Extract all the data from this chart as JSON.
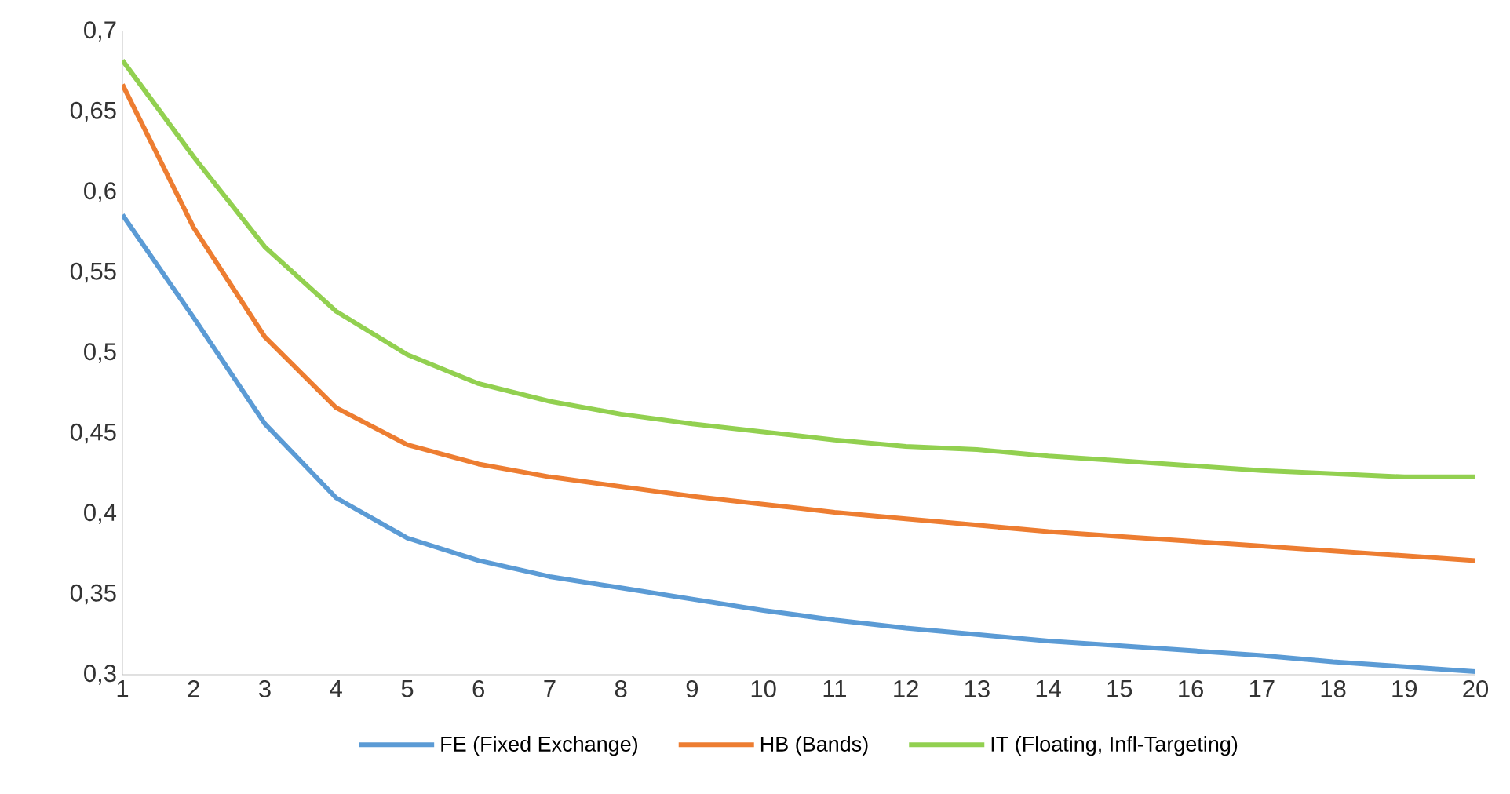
{
  "chart_data": {
    "type": "line",
    "x": [
      1,
      2,
      3,
      4,
      5,
      6,
      7,
      8,
      9,
      10,
      11,
      12,
      13,
      14,
      15,
      16,
      17,
      18,
      19,
      20
    ],
    "series": [
      {
        "name": "FE (Fixed Exchange)",
        "color": "#5b9bd5",
        "values": [
          0.586,
          0.522,
          0.456,
          0.41,
          0.385,
          0.371,
          0.361,
          0.354,
          0.347,
          0.34,
          0.334,
          0.329,
          0.325,
          0.321,
          0.318,
          0.315,
          0.312,
          0.308,
          0.305,
          0.302
        ]
      },
      {
        "name": "HB (Bands)",
        "color": "#ed7d31",
        "values": [
          0.667,
          0.578,
          0.51,
          0.466,
          0.443,
          0.431,
          0.423,
          0.417,
          0.411,
          0.406,
          0.401,
          0.397,
          0.393,
          0.389,
          0.386,
          0.383,
          0.38,
          0.377,
          0.374,
          0.371
        ]
      },
      {
        "name": "IT (Floating, Infl-Targeting)",
        "color": "#92d050",
        "values": [
          0.682,
          0.622,
          0.566,
          0.526,
          0.499,
          0.481,
          0.47,
          0.462,
          0.456,
          0.451,
          0.446,
          0.442,
          0.44,
          0.436,
          0.433,
          0.43,
          0.427,
          0.425,
          0.423,
          0.423
        ]
      }
    ],
    "xlim": [
      1,
      20
    ],
    "xticks": [
      1,
      2,
      3,
      4,
      5,
      6,
      7,
      8,
      9,
      10,
      11,
      12,
      13,
      14,
      15,
      16,
      17,
      18,
      19,
      20
    ],
    "ylim": [
      0.3,
      0.7
    ],
    "yticks": [
      {
        "value": 0.3,
        "label": "0,3"
      },
      {
        "value": 0.35,
        "label": "0,35"
      },
      {
        "value": 0.4,
        "label": "0,4"
      },
      {
        "value": 0.45,
        "label": "0,45"
      },
      {
        "value": 0.5,
        "label": "0,5"
      },
      {
        "value": 0.55,
        "label": "0,55"
      },
      {
        "value": 0.6,
        "label": "0,6"
      },
      {
        "value": 0.65,
        "label": "0,65"
      },
      {
        "value": 0.7,
        "label": "0,7"
      }
    ],
    "legend": "bottom",
    "grid": false,
    "marker": "none",
    "line_style": "solid"
  }
}
